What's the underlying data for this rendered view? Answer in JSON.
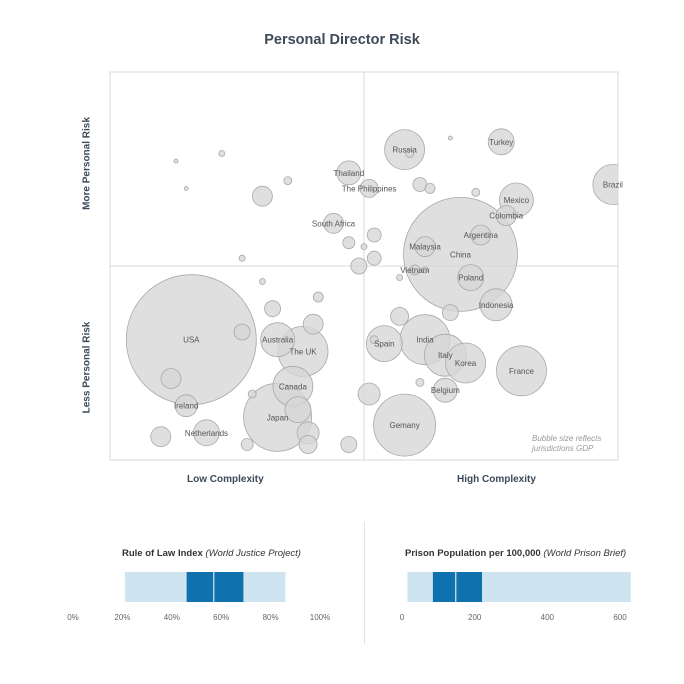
{
  "chart_data": [
    {
      "type": "scatter",
      "title": "Personal Director Risk",
      "xlabel_left": "Low Complexity",
      "xlabel_right": "High Complexity",
      "ylabel_top": "More Personal Risk",
      "ylabel_bottom": "Less Personal Risk",
      "note_line1": "Bubble size reflects",
      "note_line2": "jurisdictions GDP",
      "quadrant_lines": true,
      "points": [
        {
          "label": "USA",
          "x": 16,
          "y": 31,
          "r": 65
        },
        {
          "label": "Russia",
          "x": 58,
          "y": 80,
          "r": 20
        },
        {
          "label": "Turkey",
          "x": 77,
          "y": 82,
          "r": 13
        },
        {
          "label": "Thailand",
          "x": 47,
          "y": 74,
          "r": 12
        },
        {
          "label": "The Philippines",
          "x": 51,
          "y": 70,
          "r": 9
        },
        {
          "label": "Brazil",
          "x": 99,
          "y": 71,
          "r": 20
        },
        {
          "label": "Mexico",
          "x": 80,
          "y": 67,
          "r": 17
        },
        {
          "label": "Colombia",
          "x": 78,
          "y": 63,
          "r": 10
        },
        {
          "label": "South Africa",
          "x": 44,
          "y": 61,
          "r": 10
        },
        {
          "label": "Argentina",
          "x": 73,
          "y": 58,
          "r": 10
        },
        {
          "label": "Malaysia",
          "x": 62,
          "y": 55,
          "r": 10
        },
        {
          "label": "China",
          "x": 69,
          "y": 53,
          "r": 57
        },
        {
          "label": "Vietnam",
          "x": 60,
          "y": 49,
          "r": 5
        },
        {
          "label": "Poland",
          "x": 71,
          "y": 47,
          "r": 13
        },
        {
          "label": "Indonesia",
          "x": 76,
          "y": 40,
          "r": 16
        },
        {
          "label": "Australia",
          "x": 33,
          "y": 31,
          "r": 17
        },
        {
          "label": "The UK",
          "x": 38,
          "y": 28,
          "r": 25
        },
        {
          "label": "Spain",
          "x": 54,
          "y": 30,
          "r": 18
        },
        {
          "label": "India",
          "x": 62,
          "y": 31,
          "r": 25
        },
        {
          "label": "Italy",
          "x": 66,
          "y": 27,
          "r": 21
        },
        {
          "label": "Korea",
          "x": 70,
          "y": 25,
          "r": 20
        },
        {
          "label": "France",
          "x": 81,
          "y": 23,
          "r": 25
        },
        {
          "label": "Canada",
          "x": 36,
          "y": 19,
          "r": 20
        },
        {
          "label": "Belgium",
          "x": 66,
          "y": 18,
          "r": 12
        },
        {
          "label": "Ireland",
          "x": 15,
          "y": 14,
          "r": 11
        },
        {
          "label": "Japan",
          "x": 33,
          "y": 11,
          "r": 34
        },
        {
          "label": "Gemany",
          "x": 58,
          "y": 9,
          "r": 31
        },
        {
          "label": "Netherlands",
          "x": 19,
          "y": 7,
          "r": 13
        },
        {
          "label": "",
          "x": 30,
          "y": 68,
          "r": 10
        },
        {
          "label": "",
          "x": 52,
          "y": 58,
          "r": 7
        },
        {
          "label": "",
          "x": 47,
          "y": 56,
          "r": 6
        },
        {
          "label": "",
          "x": 50,
          "y": 55,
          "r": 3
        },
        {
          "label": "",
          "x": 52,
          "y": 52,
          "r": 7
        },
        {
          "label": "",
          "x": 49,
          "y": 50,
          "r": 8
        },
        {
          "label": "",
          "x": 63,
          "y": 70,
          "r": 5
        },
        {
          "label": "",
          "x": 61,
          "y": 71,
          "r": 7
        },
        {
          "label": "",
          "x": 72,
          "y": 69,
          "r": 4
        },
        {
          "label": "",
          "x": 59,
          "y": 79,
          "r": 4
        },
        {
          "label": "",
          "x": 57,
          "y": 47,
          "r": 3
        },
        {
          "label": "",
          "x": 62,
          "y": 49,
          "r": 3
        },
        {
          "label": "",
          "x": 67,
          "y": 83,
          "r": 2
        },
        {
          "label": "",
          "x": 22,
          "y": 79,
          "r": 3
        },
        {
          "label": "",
          "x": 13,
          "y": 77,
          "r": 2
        },
        {
          "label": "",
          "x": 15,
          "y": 70,
          "r": 2
        },
        {
          "label": "",
          "x": 35,
          "y": 72,
          "r": 4
        },
        {
          "label": "",
          "x": 26,
          "y": 52,
          "r": 3
        },
        {
          "label": "",
          "x": 30,
          "y": 46,
          "r": 3
        },
        {
          "label": "",
          "x": 41,
          "y": 42,
          "r": 5
        },
        {
          "label": "",
          "x": 32,
          "y": 39,
          "r": 8
        },
        {
          "label": "",
          "x": 40,
          "y": 35,
          "r": 10
        },
        {
          "label": "",
          "x": 26,
          "y": 33,
          "r": 8
        },
        {
          "label": "",
          "x": 57,
          "y": 37,
          "r": 9
        },
        {
          "label": "",
          "x": 67,
          "y": 38,
          "r": 8
        },
        {
          "label": "",
          "x": 12,
          "y": 21,
          "r": 10
        },
        {
          "label": "",
          "x": 28,
          "y": 17,
          "r": 4
        },
        {
          "label": "",
          "x": 37,
          "y": 13,
          "r": 13
        },
        {
          "label": "",
          "x": 39,
          "y": 7,
          "r": 11
        },
        {
          "label": "",
          "x": 10,
          "y": 6,
          "r": 10
        },
        {
          "label": "",
          "x": 27,
          "y": 4,
          "r": 6
        },
        {
          "label": "",
          "x": 39,
          "y": 4,
          "r": 9
        },
        {
          "label": "",
          "x": 47,
          "y": 4,
          "r": 8
        },
        {
          "label": "",
          "x": 51,
          "y": 17,
          "r": 11
        },
        {
          "label": "",
          "x": 61,
          "y": 20,
          "r": 4
        },
        {
          "label": "",
          "x": 52,
          "y": 31,
          "r": 4
        }
      ]
    },
    {
      "type": "bar",
      "title": "Rule of Law Index",
      "source": "(World Justice Project)",
      "xlim": [
        0,
        100
      ],
      "ticks": [
        "0%",
        "20%",
        "40%",
        "60%",
        "80%",
        "100%"
      ],
      "tick_values": [
        0,
        20,
        40,
        60,
        80,
        100
      ],
      "range_outer": [
        21,
        86
      ],
      "range_inner": [
        46,
        69
      ],
      "median": 57
    },
    {
      "type": "bar",
      "title": "Prison Population per 100,000",
      "source": "(World Prison Brief)",
      "xlim": [
        0,
        600
      ],
      "ticks": [
        "0",
        "200",
        "400",
        "600"
      ],
      "tick_values": [
        0,
        200,
        400,
        600
      ],
      "range_outer": [
        15,
        630
      ],
      "range_inner": [
        85,
        220
      ],
      "median": 148
    }
  ],
  "colors": {
    "bubble_fill": "#d6d6d6",
    "bubble_stroke": "#a8a8a8",
    "range_light": "#cfe4f1",
    "range_dark": "#0f72ae",
    "frame": "#d9d9d9",
    "heading": "#3d4a5a"
  }
}
